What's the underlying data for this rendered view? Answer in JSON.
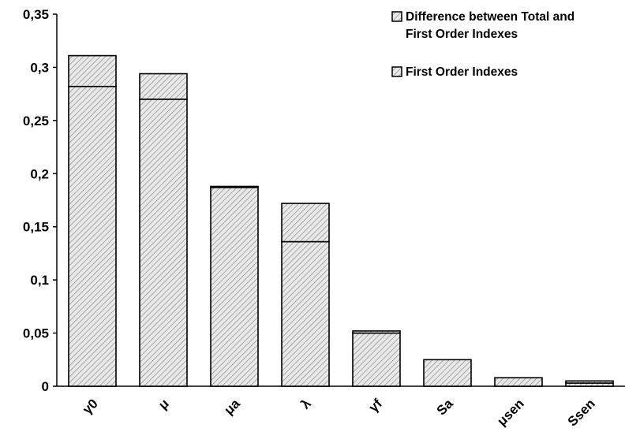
{
  "chart_data": {
    "type": "bar",
    "stacked": true,
    "categories": [
      "γ0",
      "μ",
      "μa",
      "λ",
      "γf",
      "Sa",
      "μsen",
      "Ssen"
    ],
    "series": [
      {
        "name": "First Order Indexes",
        "values": [
          0.282,
          0.27,
          0.187,
          0.136,
          0.05,
          0.0,
          0.0,
          0.003
        ]
      },
      {
        "name": "Difference between Total and First Order Indexes",
        "values": [
          0.029,
          0.024,
          0.001,
          0.036,
          0.002,
          0.025,
          0.008,
          0.002
        ]
      }
    ],
    "legend_lines": [
      [
        "Difference between Total and",
        "First Order Indexes"
      ],
      [
        "First Order Indexes"
      ]
    ],
    "ylim": [
      0,
      0.35
    ],
    "yticks": [
      "0",
      "0,05",
      "0,1",
      "0,15",
      "0,2",
      "0,25",
      "0,3",
      "0,35"
    ],
    "title": "",
    "xlabel": "",
    "ylabel": "",
    "grid": false,
    "legend_position": "top-right",
    "fill_pattern": "diagonal-hatch",
    "colors": {
      "bar_fill": "#e8e8e8",
      "hatch": "#8c8c8c",
      "outline": "#000000"
    }
  }
}
